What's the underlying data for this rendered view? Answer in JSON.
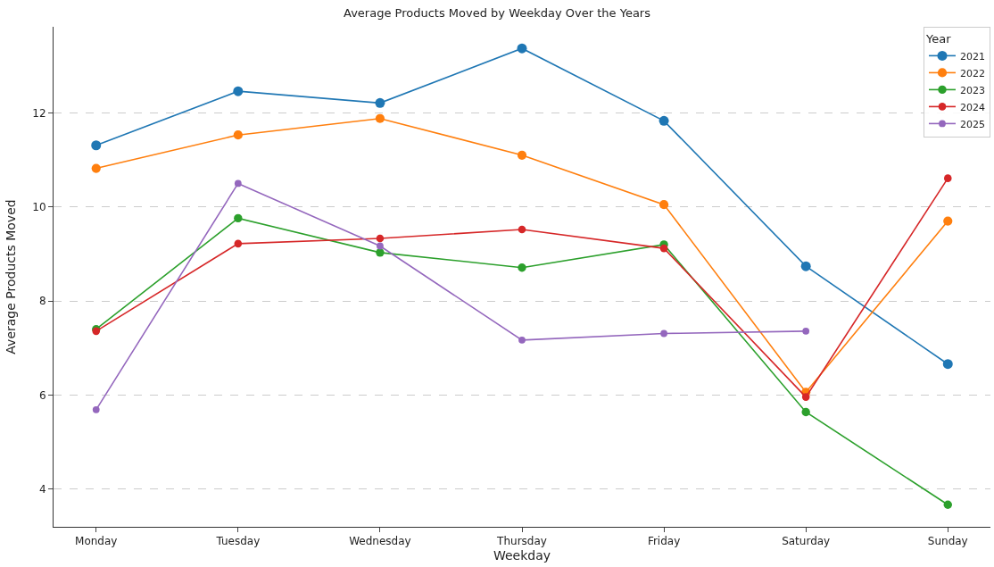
{
  "chart_data": {
    "type": "line",
    "title": "Average Products Moved by Weekday Over the Years",
    "xlabel": "Weekday",
    "ylabel": "Average Products Moved",
    "categories": [
      "Monday",
      "Tuesday",
      "Wednesday",
      "Thursday",
      "Friday",
      "Saturday",
      "Sunday"
    ],
    "series": [
      {
        "name": "2021",
        "color": "#1f77b4",
        "values": [
          11.31,
          12.46,
          12.21,
          13.37,
          11.83,
          8.74,
          6.66
        ]
      },
      {
        "name": "2022",
        "color": "#ff7f0e",
        "values": [
          10.82,
          11.53,
          11.88,
          11.1,
          10.05,
          6.06,
          9.7
        ]
      },
      {
        "name": "2023",
        "color": "#2ca02c",
        "values": [
          7.4,
          9.76,
          9.03,
          8.71,
          9.2,
          5.64,
          3.67
        ]
      },
      {
        "name": "2024",
        "color": "#d62728",
        "values": [
          7.36,
          9.22,
          9.33,
          9.52,
          9.12,
          5.96,
          10.61
        ]
      },
      {
        "name": "2025",
        "color": "#9467bd",
        "values": [
          5.69,
          10.5,
          9.17,
          7.17,
          7.31,
          7.36,
          null
        ]
      }
    ],
    "ylim": [
      3.2,
      13.83
    ],
    "yticks": [
      4,
      6,
      8,
      10,
      12
    ],
    "grid": "y",
    "legend": "top right",
    "legend_title": "Year",
    "marker": "circle",
    "line_style": "solid"
  }
}
